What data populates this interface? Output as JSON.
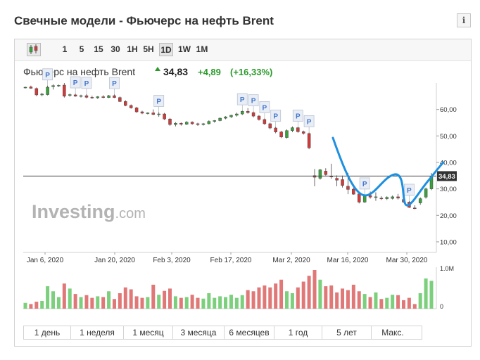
{
  "header": {
    "title": "Свечные модели - Фьючерс на нефть Brent",
    "info_label": "i"
  },
  "toolbar": {
    "timeframes": [
      "1",
      "5",
      "15",
      "30",
      "1H",
      "5H",
      "1D",
      "1W",
      "1M"
    ],
    "active_timeframe": "1D"
  },
  "quote": {
    "name": "Фьючерс на нефть Brent",
    "price": "34,83",
    "change": "+4,89",
    "change_pct": "(+16,33%)"
  },
  "watermark": {
    "text_main": "Investing",
    "text_suffix": ".com"
  },
  "ranges": [
    "1 день",
    "1 неделя",
    "1 месяц",
    "3 месяца",
    "6 месяцев",
    "1 год",
    "5 лет",
    "Макс."
  ],
  "colors": {
    "up": "#3aa23a",
    "down": "#d33a3a",
    "up_volume": "#7ccf7c",
    "down_volume": "#e07878",
    "annotation": "#1e90e0",
    "price_line": "#444444",
    "price_label_bg": "#333333"
  },
  "chart_data": {
    "type": "candlestick",
    "title": "Фьючерс на нефть Brent",
    "x_tick_labels": [
      "Jan 6, 2020",
      "Jan 20, 2020",
      "Feb 3, 2020",
      "Feb 17, 2020",
      "Mar 2, 2020",
      "Mar 16, 2020",
      "Mar 30, 2020"
    ],
    "y_tick_labels": [
      "60,00",
      "50,00",
      "40,00",
      "30,00",
      "20,00",
      "10,00"
    ],
    "y_ticks": [
      60,
      50,
      40,
      30,
      20,
      10
    ],
    "ylim": [
      6,
      70
    ],
    "volume_tick_labels": [
      "1.0M",
      "0"
    ],
    "last_price": 34.83,
    "last_price_label": "34,83",
    "candles": [
      {
        "o": 68.2,
        "h": 68.6,
        "l": 67.9,
        "c": 68.4
      },
      {
        "o": 68.5,
        "h": 69.0,
        "l": 67.8,
        "c": 68.0
      },
      {
        "o": 67.9,
        "h": 68.3,
        "l": 65.0,
        "c": 65.5
      },
      {
        "o": 65.5,
        "h": 66.3,
        "l": 65.0,
        "c": 65.8
      },
      {
        "o": 65.6,
        "h": 69.0,
        "l": 65.3,
        "c": 68.4
      },
      {
        "o": 68.6,
        "h": 69.5,
        "l": 67.5,
        "c": 69.0
      },
      {
        "o": 69.0,
        "h": 69.4,
        "l": 68.5,
        "c": 69.1
      },
      {
        "o": 69.2,
        "h": 70.0,
        "l": 64.5,
        "c": 65.0
      },
      {
        "o": 65.3,
        "h": 66.0,
        "l": 64.8,
        "c": 65.6
      },
      {
        "o": 65.5,
        "h": 66.0,
        "l": 64.8,
        "c": 65.0
      },
      {
        "o": 65.0,
        "h": 65.6,
        "l": 64.5,
        "c": 65.2
      },
      {
        "o": 65.2,
        "h": 65.8,
        "l": 64.2,
        "c": 64.6
      },
      {
        "o": 64.6,
        "h": 65.2,
        "l": 64.0,
        "c": 64.4
      },
      {
        "o": 64.4,
        "h": 65.0,
        "l": 64.0,
        "c": 64.8
      },
      {
        "o": 64.8,
        "h": 65.4,
        "l": 64.2,
        "c": 64.5
      },
      {
        "o": 64.5,
        "h": 65.5,
        "l": 64.3,
        "c": 65.2
      },
      {
        "o": 65.2,
        "h": 65.7,
        "l": 64.3,
        "c": 64.5
      },
      {
        "o": 64.5,
        "h": 64.9,
        "l": 62.8,
        "c": 63.0
      },
      {
        "o": 63.0,
        "h": 63.5,
        "l": 61.2,
        "c": 61.5
      },
      {
        "o": 61.5,
        "h": 61.9,
        "l": 60.3,
        "c": 60.6
      },
      {
        "o": 60.6,
        "h": 61.0,
        "l": 58.7,
        "c": 59.1
      },
      {
        "o": 59.1,
        "h": 59.5,
        "l": 58.2,
        "c": 58.6
      },
      {
        "o": 58.5,
        "h": 58.9,
        "l": 58.1,
        "c": 58.7
      },
      {
        "o": 58.7,
        "h": 60.0,
        "l": 57.8,
        "c": 58.1
      },
      {
        "o": 58.1,
        "h": 59.0,
        "l": 57.2,
        "c": 58.3
      },
      {
        "o": 58.3,
        "h": 58.7,
        "l": 56.0,
        "c": 56.4
      },
      {
        "o": 56.4,
        "h": 56.8,
        "l": 53.8,
        "c": 54.3
      },
      {
        "o": 54.3,
        "h": 55.2,
        "l": 53.6,
        "c": 54.8
      },
      {
        "o": 54.8,
        "h": 55.1,
        "l": 53.9,
        "c": 54.4
      },
      {
        "o": 54.4,
        "h": 55.6,
        "l": 54.1,
        "c": 55.2
      },
      {
        "o": 55.2,
        "h": 55.5,
        "l": 54.2,
        "c": 54.6
      },
      {
        "o": 54.6,
        "h": 55.0,
        "l": 53.8,
        "c": 54.3
      },
      {
        "o": 54.3,
        "h": 54.9,
        "l": 53.9,
        "c": 54.6
      },
      {
        "o": 54.6,
        "h": 55.9,
        "l": 54.3,
        "c": 55.5
      },
      {
        "o": 55.5,
        "h": 56.0,
        "l": 55.0,
        "c": 55.8
      },
      {
        "o": 55.8,
        "h": 57.0,
        "l": 55.5,
        "c": 56.7
      },
      {
        "o": 56.7,
        "h": 57.5,
        "l": 56.3,
        "c": 57.2
      },
      {
        "o": 57.2,
        "h": 58.0,
        "l": 56.8,
        "c": 57.8
      },
      {
        "o": 57.8,
        "h": 58.8,
        "l": 57.3,
        "c": 58.3
      },
      {
        "o": 58.3,
        "h": 59.6,
        "l": 57.9,
        "c": 59.3
      },
      {
        "o": 59.3,
        "h": 60.5,
        "l": 58.4,
        "c": 58.8
      },
      {
        "o": 58.8,
        "h": 59.2,
        "l": 57.0,
        "c": 57.5
      },
      {
        "o": 57.5,
        "h": 57.9,
        "l": 55.8,
        "c": 56.2
      },
      {
        "o": 56.2,
        "h": 56.6,
        "l": 54.2,
        "c": 54.6
      },
      {
        "o": 54.6,
        "h": 55.0,
        "l": 52.5,
        "c": 53.0
      },
      {
        "o": 53.0,
        "h": 53.4,
        "l": 51.0,
        "c": 51.5
      },
      {
        "o": 51.5,
        "h": 51.9,
        "l": 49.2,
        "c": 49.6
      },
      {
        "o": 49.4,
        "h": 52.5,
        "l": 49.0,
        "c": 52.0
      },
      {
        "o": 52.0,
        "h": 53.6,
        "l": 51.4,
        "c": 53.1
      },
      {
        "o": 53.1,
        "h": 53.4,
        "l": 51.2,
        "c": 51.6
      },
      {
        "o": 51.6,
        "h": 52.0,
        "l": 50.5,
        "c": 51.0
      },
      {
        "o": 50.9,
        "h": 51.3,
        "l": 45.0,
        "c": 45.5
      },
      {
        "o": 35.0,
        "h": 37.5,
        "l": 31.0,
        "c": 34.4
      },
      {
        "o": 34.0,
        "h": 37.5,
        "l": 33.5,
        "c": 37.2
      },
      {
        "o": 36.7,
        "h": 37.8,
        "l": 35.0,
        "c": 35.4
      },
      {
        "o": 34.8,
        "h": 39.5,
        "l": 33.8,
        "c": 34.5
      },
      {
        "o": 34.0,
        "h": 35.1,
        "l": 31.0,
        "c": 33.3
      },
      {
        "o": 33.5,
        "h": 35.0,
        "l": 30.5,
        "c": 31.3
      },
      {
        "o": 31.0,
        "h": 36.0,
        "l": 28.0,
        "c": 29.8
      },
      {
        "o": 29.9,
        "h": 30.4,
        "l": 27.8,
        "c": 28.0
      },
      {
        "o": 28.1,
        "h": 28.5,
        "l": 24.5,
        "c": 25.0
      },
      {
        "o": 25.0,
        "h": 27.8,
        "l": 24.7,
        "c": 27.5
      },
      {
        "o": 27.5,
        "h": 29.0,
        "l": 26.3,
        "c": 26.9
      },
      {
        "o": 27.0,
        "h": 28.7,
        "l": 25.5,
        "c": 27.0
      },
      {
        "o": 26.5,
        "h": 27.2,
        "l": 25.8,
        "c": 26.4
      },
      {
        "o": 26.3,
        "h": 27.2,
        "l": 25.8,
        "c": 26.8
      },
      {
        "o": 26.4,
        "h": 27.5,
        "l": 26.0,
        "c": 27.0
      },
      {
        "o": 27.0,
        "h": 28.1,
        "l": 26.0,
        "c": 26.5
      },
      {
        "o": 26.0,
        "h": 26.5,
        "l": 24.8,
        "c": 25.0
      },
      {
        "o": 25.0,
        "h": 25.4,
        "l": 22.8,
        "c": 23.0
      },
      {
        "o": 22.8,
        "h": 23.8,
        "l": 22.3,
        "c": 22.7
      },
      {
        "o": 24.7,
        "h": 26.8,
        "l": 24.0,
        "c": 26.3
      },
      {
        "o": 26.9,
        "h": 30.5,
        "l": 26.3,
        "c": 30.0
      },
      {
        "o": 30.0,
        "h": 36.0,
        "l": 29.5,
        "c": 34.8
      }
    ],
    "volume_rel": [
      0.15,
      0.12,
      0.18,
      0.2,
      0.58,
      0.45,
      0.3,
      0.65,
      0.52,
      0.38,
      0.3,
      0.35,
      0.28,
      0.32,
      0.3,
      0.45,
      0.25,
      0.4,
      0.55,
      0.5,
      0.32,
      0.28,
      0.3,
      0.62,
      0.36,
      0.46,
      0.52,
      0.32,
      0.28,
      0.3,
      0.36,
      0.28,
      0.26,
      0.4,
      0.28,
      0.32,
      0.3,
      0.36,
      0.28,
      0.35,
      0.48,
      0.45,
      0.55,
      0.6,
      0.55,
      0.65,
      0.75,
      0.45,
      0.4,
      0.55,
      0.7,
      0.85,
      1.0,
      0.75,
      0.58,
      0.6,
      0.42,
      0.52,
      0.48,
      0.62,
      0.45,
      0.38,
      0.3,
      0.42,
      0.25,
      0.28,
      0.36,
      0.35,
      0.22,
      0.28,
      0.12,
      0.4,
      0.78,
      0.72
    ],
    "p_markers": [
      {
        "candle": 4,
        "x": "Jan 6"
      },
      {
        "candle": 9,
        "x": "Jan 13a"
      },
      {
        "candle": 11,
        "x": "Jan 13b"
      },
      {
        "candle": 16,
        "x": "Jan 20"
      },
      {
        "candle": 24,
        "x": "Feb 3"
      },
      {
        "candle": 39,
        "x": "Feb 17a"
      },
      {
        "candle": 41,
        "x": "Feb 17b"
      },
      {
        "candle": 43,
        "x": "Feb 17c"
      },
      {
        "candle": 45,
        "x": "Feb 17d"
      },
      {
        "candle": 49,
        "x": "Feb 28a"
      },
      {
        "candle": 51,
        "x": "Feb 28b"
      },
      {
        "candle": 61,
        "x": "Mar 16"
      },
      {
        "candle": 69,
        "x": "Mar 27"
      }
    ],
    "p_label": "P"
  }
}
